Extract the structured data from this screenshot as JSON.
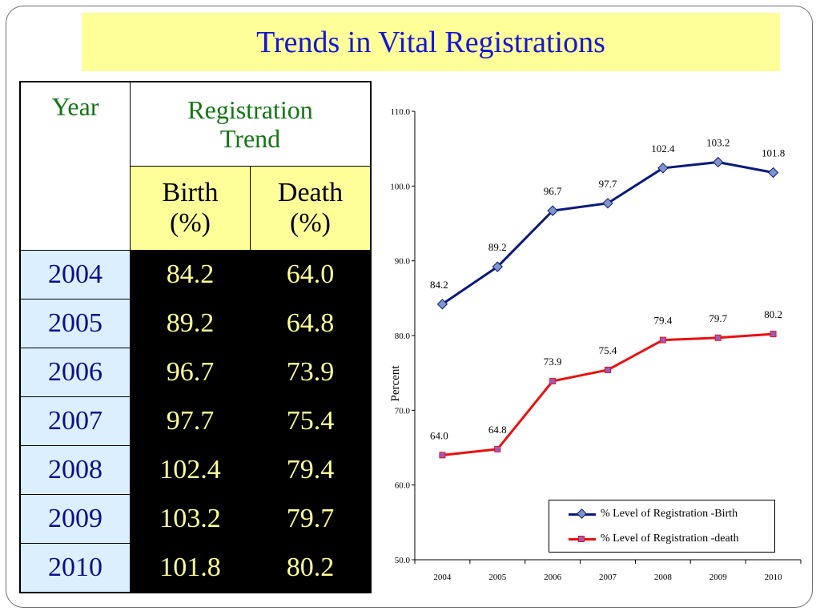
{
  "title": "Trends in Vital Registrations",
  "table": {
    "col_year": "Year",
    "col_trend": "Registration Trend",
    "col_birth": "Birth (%)",
    "col_death": "Death (%)",
    "rows": [
      {
        "year": "2004",
        "birth": "84.2",
        "death": "64.0"
      },
      {
        "year": "2005",
        "birth": "89.2",
        "death": "64.8"
      },
      {
        "year": "2006",
        "birth": "96.7",
        "death": "73.9"
      },
      {
        "year": "2007",
        "birth": "97.7",
        "death": "75.4"
      },
      {
        "year": "2008",
        "birth": "102.4",
        "death": "79.4"
      },
      {
        "year": "2009",
        "birth": "103.2",
        "death": "79.7"
      },
      {
        "year": "2010",
        "birth": "101.8",
        "death": "80.2"
      }
    ]
  },
  "chart_data": {
    "type": "line",
    "x": [
      "2004",
      "2005",
      "2006",
      "2007",
      "2008",
      "2009",
      "2010"
    ],
    "ylabel": "Percent",
    "xlabel": "",
    "ylim": [
      50,
      110
    ],
    "yticks": [
      "50.0",
      "60.0",
      "70.0",
      "80.0",
      "90.0",
      "100.0",
      "110.0"
    ],
    "grid": false,
    "legend_position": "bottom-right",
    "series": [
      {
        "name": "% Level of Registration -Birth",
        "values": [
          84.2,
          89.2,
          96.7,
          97.7,
          102.4,
          103.2,
          101.8
        ],
        "labels": [
          "84.2",
          "89.2",
          "96.7",
          "97.7",
          "102.4",
          "103.2",
          "101.8"
        ],
        "color": "#0a1a7a",
        "marker": "diamond",
        "marker_color": "#7f95c8"
      },
      {
        "name": "% Level of Registration -death",
        "values": [
          64.0,
          64.8,
          73.9,
          75.4,
          79.4,
          79.7,
          80.2
        ],
        "labels": [
          "64.0",
          "64.8",
          "73.9",
          "75.4",
          "79.4",
          "79.7",
          "80.2"
        ],
        "color": "#e81010",
        "marker": "square",
        "marker_color": "#9a5bc0"
      }
    ]
  },
  "colors": {
    "title_bg": "#ffff99",
    "title_text": "#1515d6",
    "header_green": "#137513",
    "year_bg": "#dcefff",
    "value_text": "#ffff99"
  }
}
